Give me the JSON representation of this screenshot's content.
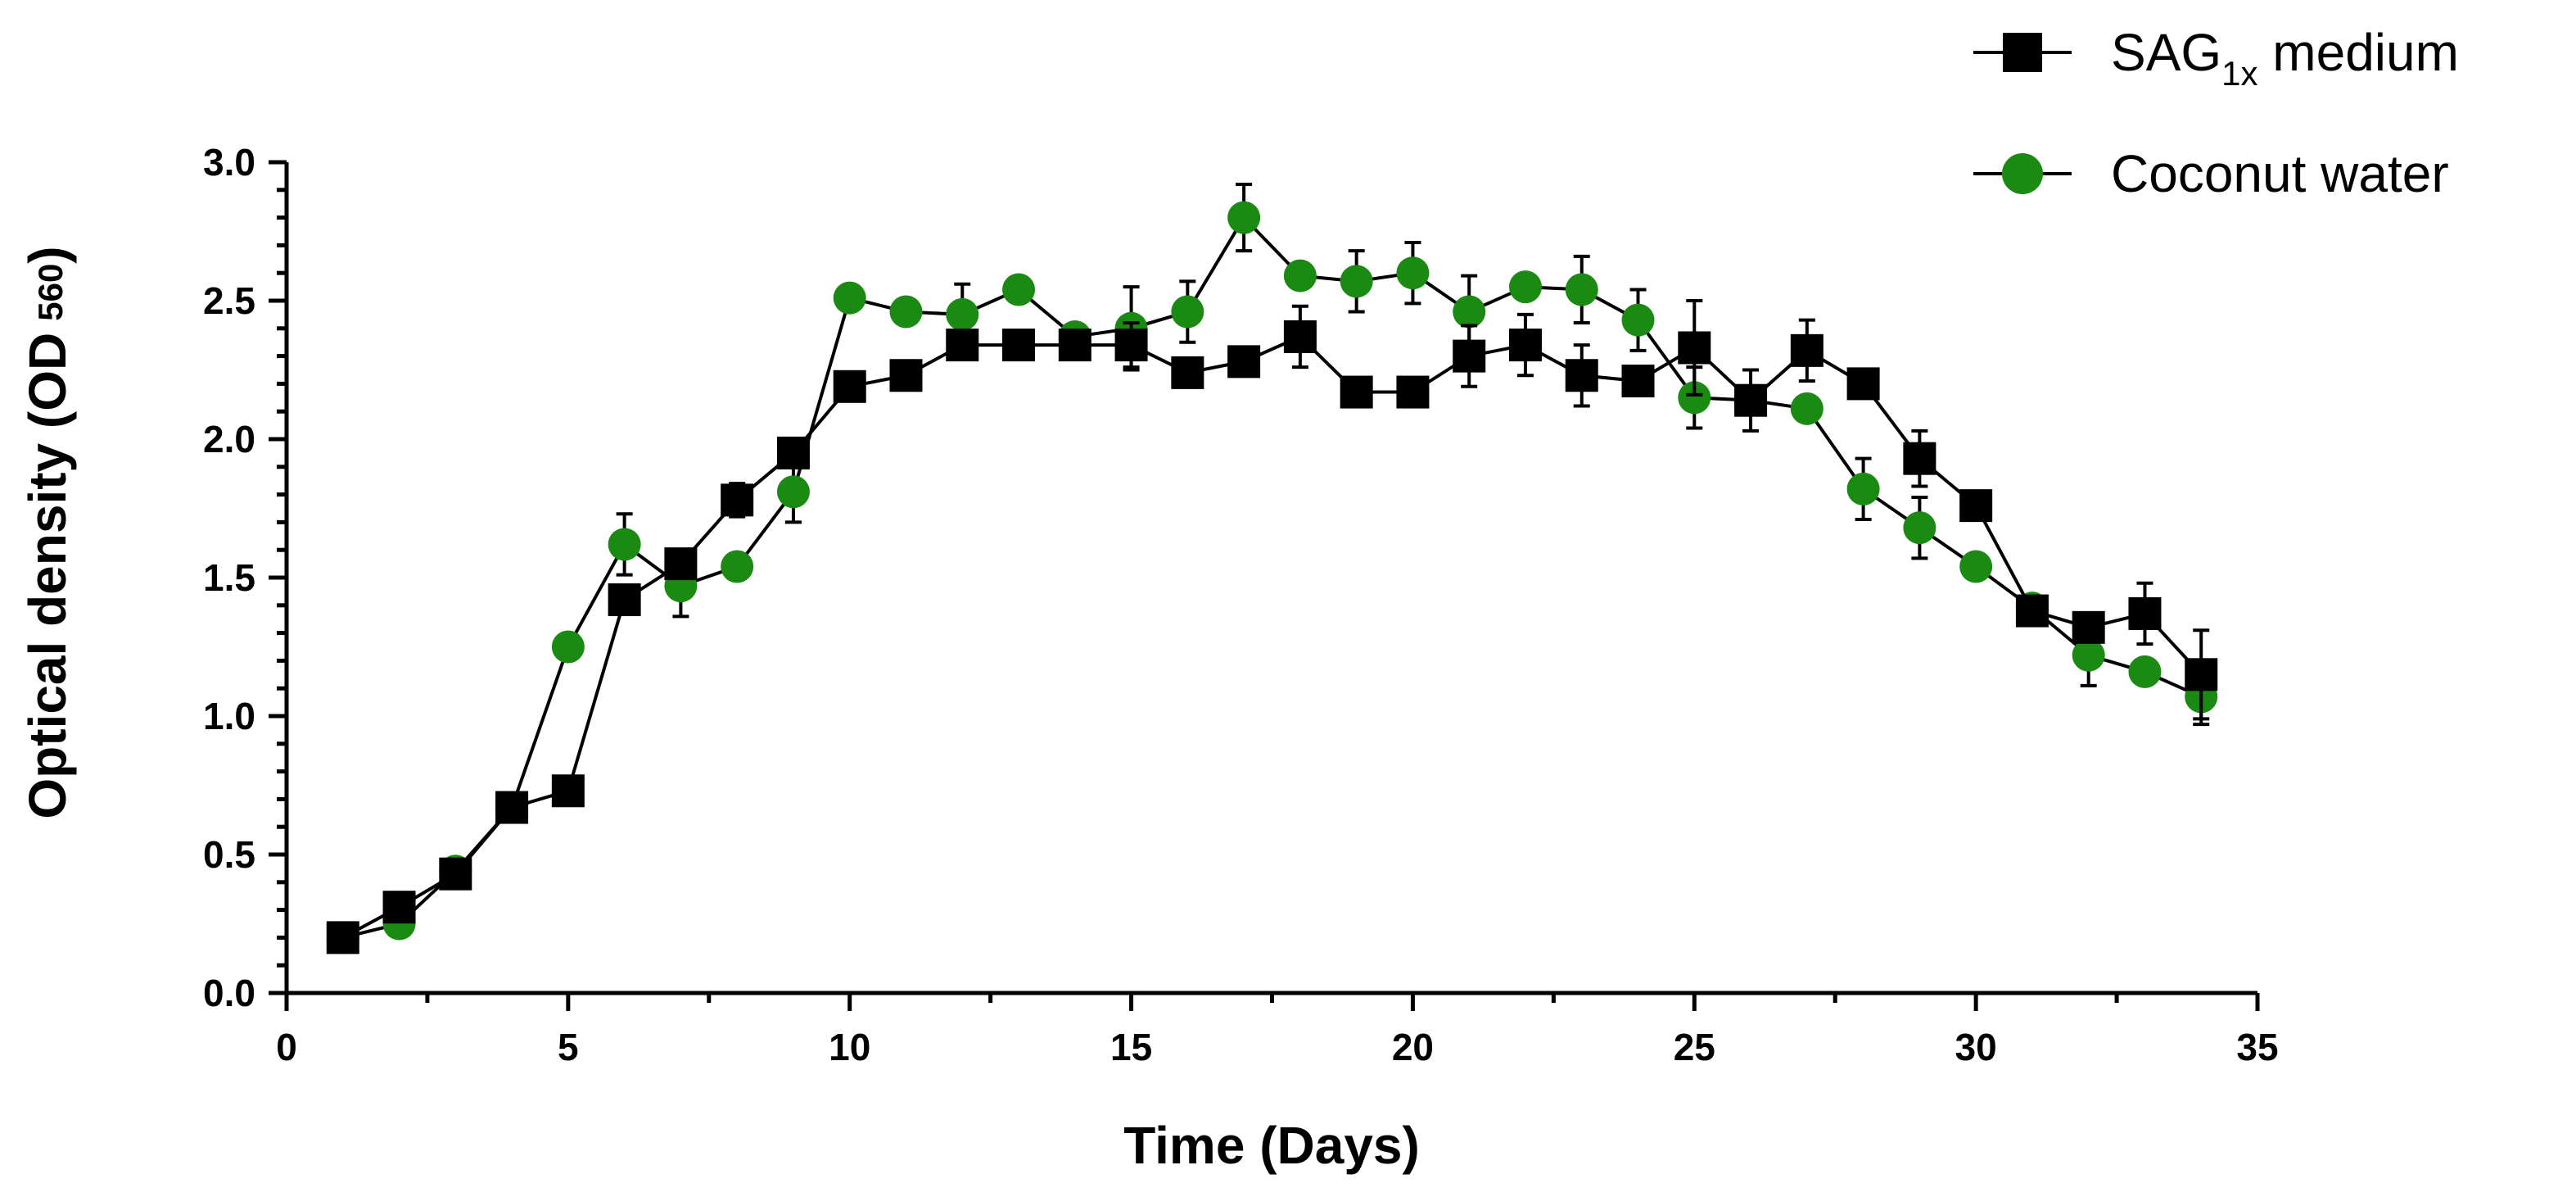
{
  "chart_data": {
    "type": "line",
    "title": "",
    "xlabel": "Time (Days)",
    "ylabel_main": "Optical density (OD",
    "ylabel_sub": "560",
    "ylabel_close": ")",
    "xlim": [
      0,
      35
    ],
    "ylim": [
      0,
      3.0
    ],
    "x_ticks": [
      0,
      5,
      10,
      15,
      20,
      25,
      30,
      35
    ],
    "x_tick_labels": [
      "0",
      "5",
      "10",
      "15",
      "20",
      "25",
      "30",
      "35"
    ],
    "y_ticks": [
      0,
      0.5,
      1.0,
      1.5,
      2.0,
      2.5,
      3.0
    ],
    "y_tick_labels": [
      "0.0",
      "0.5",
      "1.0",
      "1.5",
      "2.0",
      "2.5",
      "3.0"
    ],
    "grid": false,
    "legend_position": "top-right",
    "x": [
      1,
      2,
      3,
      4,
      5,
      6,
      7,
      8,
      9,
      10,
      11,
      12,
      13,
      14,
      15,
      16,
      17,
      18,
      19,
      20,
      21,
      22,
      23,
      24,
      25,
      26,
      27,
      28,
      29,
      30,
      31,
      32,
      33,
      34
    ],
    "series": [
      {
        "name": "SAG",
        "name_sub": "1x",
        "name_suffix": " medium",
        "marker": "square",
        "color": "#000000",
        "values": [
          0.2,
          0.31,
          0.43,
          0.67,
          0.73,
          1.42,
          1.55,
          1.78,
          1.95,
          2.19,
          2.23,
          2.34,
          2.34,
          2.34,
          2.34,
          2.24,
          2.28,
          2.37,
          2.17,
          2.17,
          2.3,
          2.34,
          2.23,
          2.21,
          2.33,
          2.14,
          2.32,
          2.2,
          1.93,
          1.76,
          1.38,
          1.32,
          1.37,
          1.15
        ],
        "errors": [
          0,
          0,
          0,
          0,
          0,
          0,
          0.05,
          0.06,
          0,
          0,
          0,
          0,
          0,
          0,
          0.08,
          0,
          0,
          0.11,
          0,
          0,
          0.11,
          0.11,
          0.11,
          0,
          0.17,
          0.11,
          0.11,
          0,
          0.1,
          0,
          0,
          0,
          0.11,
          0.16
        ]
      },
      {
        "name": "Coconut water",
        "name_sub": "",
        "name_suffix": "",
        "marker": "circle",
        "color": "#1a8a12",
        "values": [
          0.2,
          0.25,
          0.44,
          0.67,
          1.25,
          1.62,
          1.47,
          1.54,
          1.81,
          2.51,
          2.46,
          2.45,
          2.54,
          2.37,
          2.4,
          2.46,
          2.8,
          2.59,
          2.57,
          2.6,
          2.46,
          2.55,
          2.54,
          2.43,
          2.15,
          2.14,
          2.11,
          1.82,
          1.68,
          1.54,
          1.39,
          1.22,
          1.16,
          1.07
        ],
        "errors": [
          0,
          0,
          0,
          0,
          0,
          0.11,
          0.11,
          0,
          0.11,
          0,
          0,
          0.11,
          0,
          0,
          0.15,
          0.11,
          0.12,
          0,
          0.11,
          0.11,
          0.13,
          0,
          0.12,
          0.11,
          0.11,
          0,
          0,
          0.11,
          0.11,
          0,
          0,
          0.11,
          0,
          0.1
        ]
      }
    ]
  }
}
